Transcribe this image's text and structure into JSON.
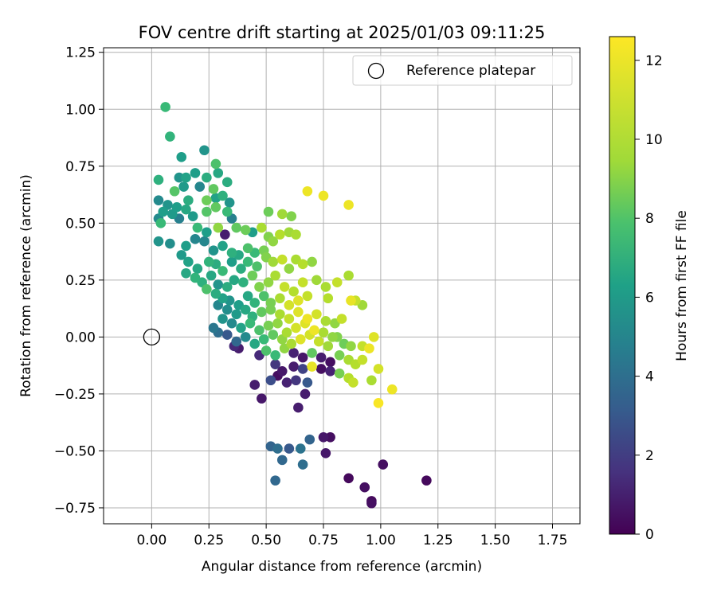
{
  "chart_data": {
    "type": "scatter",
    "title": "FOV centre drift starting at 2025/01/03 09:11:25",
    "xlabel": "Angular distance from reference (arcmin)",
    "ylabel": "Rotation from reference (arcmin)",
    "xlim": [
      -0.21,
      1.87
    ],
    "ylim": [
      -0.82,
      1.27
    ],
    "xticks": [
      "0.00",
      "0.25",
      "0.50",
      "0.75",
      "1.00",
      "1.25",
      "1.50",
      "1.75"
    ],
    "yticks": [
      "−0.75",
      "−0.50",
      "−0.25",
      "0.00",
      "0.25",
      "0.50",
      "0.75",
      "1.00",
      "1.25"
    ],
    "grid": true,
    "legend": {
      "position": "top-right",
      "entries": [
        "Reference platepar"
      ]
    },
    "reference_point": {
      "x": 0.0,
      "y": 0.0,
      "label": "Reference platepar"
    },
    "colorbar": {
      "label": "Hours from first FF file",
      "range": [
        0,
        12.6
      ],
      "ticks": [
        "0",
        "2",
        "4",
        "6",
        "8",
        "10",
        "12"
      ],
      "colormap": "viridis"
    },
    "points": [
      [
        0.06,
        1.01,
        8.5
      ],
      [
        0.08,
        0.88,
        8.2
      ],
      [
        0.23,
        0.82,
        6.5
      ],
      [
        0.13,
        0.79,
        7.0
      ],
      [
        0.28,
        0.76,
        9.0
      ],
      [
        0.03,
        0.69,
        8.0
      ],
      [
        0.12,
        0.7,
        6.5
      ],
      [
        0.15,
        0.7,
        7.2
      ],
      [
        0.19,
        0.72,
        7.0
      ],
      [
        0.24,
        0.7,
        7.8
      ],
      [
        0.29,
        0.72,
        7.5
      ],
      [
        0.33,
        0.68,
        7.8
      ],
      [
        0.27,
        0.65,
        9.5
      ],
      [
        0.1,
        0.64,
        9.2
      ],
      [
        0.14,
        0.66,
        6.8
      ],
      [
        0.21,
        0.66,
        5.8
      ],
      [
        0.03,
        0.6,
        6.0
      ],
      [
        0.07,
        0.58,
        6.5
      ],
      [
        0.11,
        0.57,
        7.0
      ],
      [
        0.16,
        0.6,
        7.8
      ],
      [
        0.24,
        0.6,
        9.8
      ],
      [
        0.28,
        0.61,
        7.2
      ],
      [
        0.31,
        0.62,
        8.0
      ],
      [
        0.34,
        0.59,
        6.5
      ],
      [
        0.03,
        0.52,
        6.0
      ],
      [
        0.05,
        0.55,
        7.0
      ],
      [
        0.09,
        0.54,
        6.8
      ],
      [
        0.12,
        0.52,
        5.5
      ],
      [
        0.15,
        0.56,
        7.5
      ],
      [
        0.18,
        0.53,
        6.8
      ],
      [
        0.24,
        0.55,
        9.2
      ],
      [
        0.28,
        0.57,
        9.5
      ],
      [
        0.33,
        0.55,
        8.5
      ],
      [
        0.35,
        0.52,
        5.5
      ],
      [
        0.04,
        0.5,
        8.5
      ],
      [
        0.2,
        0.48,
        8.5
      ],
      [
        0.24,
        0.46,
        7.0
      ],
      [
        0.29,
        0.48,
        10.5
      ],
      [
        0.32,
        0.45,
        1.0
      ],
      [
        0.37,
        0.48,
        9.5
      ],
      [
        0.41,
        0.47,
        9.8
      ],
      [
        0.44,
        0.46,
        7.0
      ],
      [
        0.48,
        0.48,
        11.0
      ],
      [
        0.51,
        0.44,
        10.2
      ],
      [
        0.03,
        0.42,
        6.5
      ],
      [
        0.08,
        0.41,
        6.2
      ],
      [
        0.15,
        0.4,
        7.0
      ],
      [
        0.19,
        0.43,
        5.8
      ],
      [
        0.23,
        0.42,
        5.8
      ],
      [
        0.27,
        0.38,
        6.5
      ],
      [
        0.31,
        0.4,
        7.2
      ],
      [
        0.35,
        0.37,
        8.0
      ],
      [
        0.38,
        0.36,
        7.5
      ],
      [
        0.42,
        0.39,
        9.0
      ],
      [
        0.45,
        0.37,
        8.5
      ],
      [
        0.49,
        0.38,
        10.0
      ],
      [
        0.53,
        0.42,
        10.5
      ],
      [
        0.56,
        0.45,
        11.2
      ],
      [
        0.6,
        0.46,
        10.8
      ],
      [
        0.63,
        0.45,
        11.0
      ],
      [
        0.13,
        0.36,
        6.8
      ],
      [
        0.16,
        0.33,
        7.2
      ],
      [
        0.2,
        0.3,
        7.5
      ],
      [
        0.25,
        0.33,
        8.2
      ],
      [
        0.28,
        0.32,
        7.8
      ],
      [
        0.31,
        0.29,
        8.5
      ],
      [
        0.35,
        0.33,
        7.0
      ],
      [
        0.39,
        0.3,
        7.8
      ],
      [
        0.42,
        0.33,
        8.5
      ],
      [
        0.46,
        0.31,
        9.0
      ],
      [
        0.5,
        0.35,
        10.2
      ],
      [
        0.53,
        0.33,
        10.8
      ],
      [
        0.57,
        0.34,
        11.5
      ],
      [
        0.6,
        0.3,
        10.5
      ],
      [
        0.63,
        0.34,
        11.0
      ],
      [
        0.66,
        0.32,
        11.2
      ],
      [
        0.7,
        0.33,
        10.5
      ],
      [
        0.15,
        0.28,
        7.5
      ],
      [
        0.19,
        0.26,
        8.2
      ],
      [
        0.22,
        0.24,
        8.0
      ],
      [
        0.26,
        0.27,
        7.5
      ],
      [
        0.29,
        0.23,
        6.5
      ],
      [
        0.33,
        0.22,
        7.8
      ],
      [
        0.36,
        0.25,
        7.5
      ],
      [
        0.4,
        0.24,
        8.0
      ],
      [
        0.44,
        0.27,
        9.8
      ],
      [
        0.47,
        0.22,
        10.2
      ],
      [
        0.51,
        0.24,
        10.5
      ],
      [
        0.54,
        0.27,
        11.0
      ],
      [
        0.58,
        0.22,
        11.5
      ],
      [
        0.62,
        0.2,
        11.2
      ],
      [
        0.66,
        0.24,
        11.5
      ],
      [
        0.72,
        0.25,
        10.8
      ],
      [
        0.76,
        0.22,
        11.0
      ],
      [
        0.81,
        0.24,
        11.5
      ],
      [
        0.24,
        0.21,
        9.0
      ],
      [
        0.28,
        0.19,
        7.8
      ],
      [
        0.31,
        0.17,
        7.2
      ],
      [
        0.34,
        0.16,
        6.5
      ],
      [
        0.38,
        0.14,
        7.0
      ],
      [
        0.42,
        0.18,
        7.5
      ],
      [
        0.45,
        0.15,
        8.2
      ],
      [
        0.49,
        0.18,
        9.0
      ],
      [
        0.52,
        0.15,
        10.0
      ],
      [
        0.56,
        0.17,
        11.0
      ],
      [
        0.6,
        0.14,
        11.8
      ],
      [
        0.64,
        0.16,
        12.0
      ],
      [
        0.68,
        0.18,
        11.5
      ],
      [
        0.77,
        0.17,
        11.2
      ],
      [
        0.86,
        0.27,
        11.0
      ],
      [
        0.29,
        0.14,
        5.8
      ],
      [
        0.33,
        0.12,
        6.2
      ],
      [
        0.37,
        0.1,
        6.8
      ],
      [
        0.41,
        0.12,
        7.5
      ],
      [
        0.44,
        0.09,
        8.0
      ],
      [
        0.48,
        0.11,
        9.5
      ],
      [
        0.52,
        0.12,
        10.0
      ],
      [
        0.56,
        0.1,
        11.0
      ],
      [
        0.6,
        0.08,
        11.5
      ],
      [
        0.64,
        0.11,
        12.0
      ],
      [
        0.68,
        0.08,
        12.3
      ],
      [
        0.72,
        0.1,
        11.8
      ],
      [
        0.76,
        0.07,
        11.0
      ],
      [
        0.8,
        0.06,
        10.5
      ],
      [
        0.87,
        0.16,
        12.2
      ],
      [
        0.31,
        0.08,
        6.5
      ],
      [
        0.35,
        0.06,
        6.0
      ],
      [
        0.39,
        0.04,
        7.2
      ],
      [
        0.43,
        0.06,
        8.5
      ],
      [
        0.47,
        0.03,
        9.0
      ],
      [
        0.51,
        0.05,
        10.0
      ],
      [
        0.55,
        0.06,
        10.5
      ],
      [
        0.59,
        0.02,
        11.0
      ],
      [
        0.63,
        0.04,
        11.8
      ],
      [
        0.67,
        0.06,
        12.0
      ],
      [
        0.71,
        0.03,
        12.3
      ],
      [
        0.75,
        0.02,
        11.0
      ],
      [
        0.79,
        0.0,
        10.5
      ],
      [
        0.83,
        0.08,
        11.5
      ],
      [
        0.89,
        0.16,
        11.5
      ],
      [
        0.92,
        0.14,
        10.8
      ],
      [
        0.27,
        0.04,
        5.0
      ],
      [
        0.29,
        0.02,
        4.5
      ],
      [
        0.33,
        0.01,
        3.5
      ],
      [
        0.37,
        -0.02,
        4.2
      ],
      [
        0.41,
        0.0,
        6.0
      ],
      [
        0.45,
        -0.03,
        7.5
      ],
      [
        0.49,
        -0.01,
        8.5
      ],
      [
        0.53,
        0.01,
        9.5
      ],
      [
        0.57,
        -0.01,
        10.5
      ],
      [
        0.61,
        -0.03,
        11.0
      ],
      [
        0.65,
        -0.01,
        12.0
      ],
      [
        0.69,
        0.01,
        11.8
      ],
      [
        0.73,
        -0.02,
        11.5
      ],
      [
        0.77,
        -0.04,
        10.8
      ],
      [
        0.81,
        0.0,
        10.2
      ],
      [
        0.84,
        -0.03,
        9.8
      ],
      [
        0.87,
        -0.04,
        10.5
      ],
      [
        0.92,
        -0.04,
        11.5
      ],
      [
        0.95,
        -0.05,
        12.3
      ],
      [
        0.97,
        0.0,
        12.0
      ],
      [
        0.36,
        -0.04,
        1.5
      ],
      [
        0.38,
        -0.05,
        1.0
      ],
      [
        0.47,
        -0.08,
        1.5
      ],
      [
        0.5,
        -0.06,
        9.0
      ],
      [
        0.54,
        -0.08,
        8.5
      ],
      [
        0.58,
        -0.05,
        10.5
      ],
      [
        0.62,
        -0.07,
        1.2
      ],
      [
        0.66,
        -0.09,
        0.8
      ],
      [
        0.7,
        -0.07,
        9.5
      ],
      [
        0.74,
        -0.09,
        1.0
      ],
      [
        0.78,
        -0.11,
        0.5
      ],
      [
        0.82,
        -0.08,
        10.0
      ],
      [
        0.86,
        -0.1,
        11.0
      ],
      [
        0.89,
        -0.12,
        11.2
      ],
      [
        0.92,
        -0.1,
        11.5
      ],
      [
        0.54,
        -0.12,
        2.0
      ],
      [
        0.57,
        -0.15,
        0.8
      ],
      [
        0.62,
        -0.13,
        1.0
      ],
      [
        0.66,
        -0.14,
        2.5
      ],
      [
        0.7,
        -0.13,
        12.2
      ],
      [
        0.74,
        -0.14,
        0.5
      ],
      [
        0.78,
        -0.15,
        1.2
      ],
      [
        0.82,
        -0.16,
        10.0
      ],
      [
        0.86,
        -0.18,
        11.2
      ],
      [
        0.88,
        -0.2,
        11.5
      ],
      [
        0.96,
        -0.19,
        11.0
      ],
      [
        0.99,
        -0.14,
        11.8
      ],
      [
        1.05,
        -0.23,
        12.3
      ],
      [
        0.99,
        -0.29,
        12.5
      ],
      [
        0.45,
        -0.21,
        1.0
      ],
      [
        0.52,
        -0.19,
        3.0
      ],
      [
        0.55,
        -0.17,
        0.5
      ],
      [
        0.59,
        -0.2,
        1.2
      ],
      [
        0.63,
        -0.19,
        2.0
      ],
      [
        0.68,
        -0.2,
        3.5
      ],
      [
        0.67,
        -0.25,
        1.0
      ],
      [
        0.48,
        -0.27,
        0.8
      ],
      [
        0.64,
        -0.31,
        1.0
      ],
      [
        0.52,
        -0.48,
        4.0
      ],
      [
        0.55,
        -0.49,
        4.5
      ],
      [
        0.6,
        -0.49,
        3.5
      ],
      [
        0.57,
        -0.54,
        4.2
      ],
      [
        0.65,
        -0.49,
        4.8
      ],
      [
        0.69,
        -0.45,
        4.0
      ],
      [
        0.66,
        -0.56,
        4.5
      ],
      [
        0.54,
        -0.63,
        4.2
      ],
      [
        0.75,
        -0.44,
        0.8
      ],
      [
        0.78,
        -0.44,
        0.5
      ],
      [
        0.76,
        -0.51,
        0.8
      ],
      [
        0.86,
        -0.62,
        0.3
      ],
      [
        0.93,
        -0.66,
        0.5
      ],
      [
        0.96,
        -0.72,
        0.3
      ],
      [
        0.96,
        -0.73,
        0.5
      ],
      [
        1.01,
        -0.56,
        0.5
      ],
      [
        1.2,
        -0.63,
        0.3
      ],
      [
        0.68,
        0.64,
        12.3
      ],
      [
        0.75,
        0.62,
        12.3
      ],
      [
        0.86,
        0.58,
        12.3
      ],
      [
        0.57,
        0.54,
        10.8
      ],
      [
        0.61,
        0.53,
        10.2
      ],
      [
        0.51,
        0.55,
        9.8
      ]
    ]
  }
}
